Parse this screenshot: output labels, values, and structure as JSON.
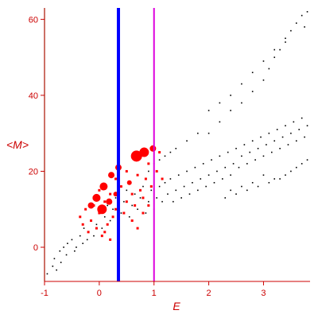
{
  "chart_data": {
    "type": "scatter",
    "xlabel": "E",
    "ylabel": "<M>",
    "xlim": [
      -1,
      3.85
    ],
    "ylim": [
      -9,
      63
    ],
    "xticks": [
      -1,
      0,
      1,
      2,
      3
    ],
    "yticks": [
      0,
      20,
      40,
      60
    ],
    "grid": false,
    "legend": "none",
    "colors": {
      "axes": "#cc0000",
      "black_points": "#000000",
      "red_points": "#ff0000",
      "blue_line": "#0000ff",
      "magenta_line": "#dd00dd",
      "green_line": "#006600"
    },
    "vertical_lines": [
      {
        "x": -1.0,
        "color": "#006600",
        "width": 1.2
      },
      {
        "x": 0.35,
        "color": "#0000ff",
        "width": 4
      },
      {
        "x": 1.0,
        "color": "#dd00dd",
        "width": 2
      }
    ],
    "series": [
      {
        "marker": "small-black",
        "points": [
          [
            -0.95,
            -7
          ],
          [
            -0.85,
            -5
          ],
          [
            -0.82,
            -3
          ],
          [
            -0.78,
            -6
          ],
          [
            -0.72,
            -1
          ],
          [
            -0.7,
            -4
          ],
          [
            -0.65,
            0
          ],
          [
            -0.6,
            -2
          ],
          [
            -0.58,
            1
          ],
          [
            -0.5,
            2
          ],
          [
            -0.45,
            -1
          ],
          [
            -0.42,
            0
          ],
          [
            -0.35,
            3
          ],
          [
            -0.3,
            1
          ],
          [
            -0.28,
            5
          ],
          [
            -0.22,
            2
          ],
          [
            -0.2,
            4
          ],
          [
            -0.15,
            7
          ],
          [
            -0.1,
            3
          ],
          [
            -0.05,
            6
          ],
          [
            0.0,
            9
          ],
          [
            0.05,
            5
          ],
          [
            0.1,
            8
          ],
          [
            0.15,
            11
          ],
          [
            0.2,
            7
          ],
          [
            0.25,
            10
          ],
          [
            0.3,
            13
          ],
          [
            0.35,
            4
          ],
          [
            0.4,
            9
          ],
          [
            0.45,
            12
          ],
          [
            0.5,
            15
          ],
          [
            0.55,
            8
          ],
          [
            0.6,
            11
          ],
          [
            0.65,
            14
          ],
          [
            0.7,
            10
          ],
          [
            0.75,
            13
          ],
          [
            0.8,
            16
          ],
          [
            0.85,
            9
          ],
          [
            0.9,
            12
          ],
          [
            0.95,
            15
          ],
          [
            1.0,
            10
          ],
          [
            1.05,
            13
          ],
          [
            1.1,
            16
          ],
          [
            1.15,
            12
          ],
          [
            1.2,
            17
          ],
          [
            1.25,
            14
          ],
          [
            1.3,
            18
          ],
          [
            1.35,
            12
          ],
          [
            1.4,
            15
          ],
          [
            1.45,
            19
          ],
          [
            1.5,
            13
          ],
          [
            1.55,
            16
          ],
          [
            1.6,
            20
          ],
          [
            1.65,
            14
          ],
          [
            1.7,
            17
          ],
          [
            1.75,
            21
          ],
          [
            1.8,
            15
          ],
          [
            1.85,
            18
          ],
          [
            1.9,
            22
          ],
          [
            1.95,
            16
          ],
          [
            2.0,
            19
          ],
          [
            2.05,
            23
          ],
          [
            2.1,
            17
          ],
          [
            2.15,
            20
          ],
          [
            2.2,
            24
          ],
          [
            2.25,
            18
          ],
          [
            2.3,
            21
          ],
          [
            2.35,
            25
          ],
          [
            2.4,
            19
          ],
          [
            2.45,
            22
          ],
          [
            2.5,
            26
          ],
          [
            2.55,
            21
          ],
          [
            2.6,
            24
          ],
          [
            2.65,
            27
          ],
          [
            2.7,
            22
          ],
          [
            2.75,
            25
          ],
          [
            2.8,
            28
          ],
          [
            2.85,
            23
          ],
          [
            2.9,
            26
          ],
          [
            2.95,
            29
          ],
          [
            3.0,
            24
          ],
          [
            3.05,
            27
          ],
          [
            3.1,
            30
          ],
          [
            3.15,
            25
          ],
          [
            3.2,
            28
          ],
          [
            3.25,
            31
          ],
          [
            3.3,
            26
          ],
          [
            3.35,
            29
          ],
          [
            3.4,
            32
          ],
          [
            3.45,
            27
          ],
          [
            3.5,
            30
          ],
          [
            3.55,
            33
          ],
          [
            3.6,
            28
          ],
          [
            3.65,
            31
          ],
          [
            3.7,
            34
          ],
          [
            3.75,
            29
          ],
          [
            3.8,
            32
          ],
          [
            2.0,
            30
          ],
          [
            2.2,
            33
          ],
          [
            2.4,
            36
          ],
          [
            2.6,
            38
          ],
          [
            2.8,
            41
          ],
          [
            3.0,
            44
          ],
          [
            3.1,
            47
          ],
          [
            3.2,
            50
          ],
          [
            3.3,
            52
          ],
          [
            3.4,
            55
          ],
          [
            3.5,
            57
          ],
          [
            3.6,
            59
          ],
          [
            3.7,
            61
          ],
          [
            3.75,
            58
          ],
          [
            3.8,
            62
          ],
          [
            2.3,
            13
          ],
          [
            2.5,
            14
          ],
          [
            2.7,
            15
          ],
          [
            2.9,
            16
          ],
          [
            3.1,
            17
          ],
          [
            3.3,
            18
          ],
          [
            3.5,
            20
          ],
          [
            3.7,
            22
          ],
          [
            3.8,
            23
          ],
          [
            3.6,
            21
          ],
          [
            3.4,
            19
          ],
          [
            3.2,
            18
          ],
          [
            3.0,
            19
          ],
          [
            2.8,
            17
          ],
          [
            2.6,
            16
          ],
          [
            2.4,
            15
          ],
          [
            1.2,
            24
          ],
          [
            1.4,
            26
          ],
          [
            1.6,
            28
          ],
          [
            1.8,
            30
          ],
          [
            1.0,
            22
          ],
          [
            0.9,
            20
          ],
          [
            1.1,
            23
          ],
          [
            1.3,
            25
          ],
          [
            2.0,
            36
          ],
          [
            2.2,
            38
          ],
          [
            2.4,
            40
          ],
          [
            2.6,
            43
          ],
          [
            2.8,
            46
          ],
          [
            3.0,
            49
          ],
          [
            3.2,
            52
          ],
          [
            3.4,
            54
          ]
        ]
      },
      {
        "marker": "small-red",
        "points": [
          [
            -0.35,
            8
          ],
          [
            -0.3,
            6
          ],
          [
            -0.25,
            10
          ],
          [
            -0.2,
            4
          ],
          [
            -0.15,
            7
          ],
          [
            -0.1,
            11
          ],
          [
            -0.05,
            5
          ],
          [
            0.0,
            9
          ],
          [
            0.05,
            3
          ],
          [
            0.1,
            12
          ],
          [
            0.15,
            6
          ],
          [
            0.2,
            14
          ],
          [
            0.25,
            8
          ],
          [
            0.3,
            10
          ],
          [
            0.35,
            13
          ],
          [
            0.4,
            16
          ],
          [
            0.45,
            9
          ],
          [
            0.5,
            12
          ],
          [
            0.55,
            17
          ],
          [
            0.6,
            14
          ],
          [
            0.65,
            11
          ],
          [
            0.7,
            19
          ],
          [
            0.75,
            15
          ],
          [
            0.8,
            13
          ],
          [
            0.85,
            18
          ],
          [
            0.9,
            22
          ],
          [
            0.95,
            16
          ],
          [
            1.05,
            20
          ],
          [
            1.1,
            25
          ],
          [
            1.15,
            18
          ],
          [
            0.1,
            4
          ],
          [
            0.2,
            2
          ],
          [
            0.0,
            15
          ],
          [
            -0.1,
            13
          ],
          [
            0.3,
            18
          ],
          [
            0.5,
            20
          ],
          [
            0.6,
            7
          ],
          [
            0.7,
            5
          ],
          [
            0.8,
            9
          ],
          [
            0.9,
            11
          ]
        ]
      },
      {
        "marker": "large-red",
        "points": [
          [
            -0.05,
            13,
            5
          ],
          [
            0.08,
            16,
            5
          ],
          [
            0.22,
            19,
            4
          ],
          [
            0.35,
            21,
            4
          ],
          [
            0.68,
            24,
            7
          ],
          [
            0.82,
            25,
            6
          ],
          [
            0.98,
            26,
            4
          ],
          [
            -0.15,
            11,
            4
          ],
          [
            0.05,
            10,
            6
          ],
          [
            0.18,
            12,
            4
          ],
          [
            0.3,
            14,
            3
          ],
          [
            0.55,
            17,
            3
          ]
        ]
      }
    ]
  }
}
